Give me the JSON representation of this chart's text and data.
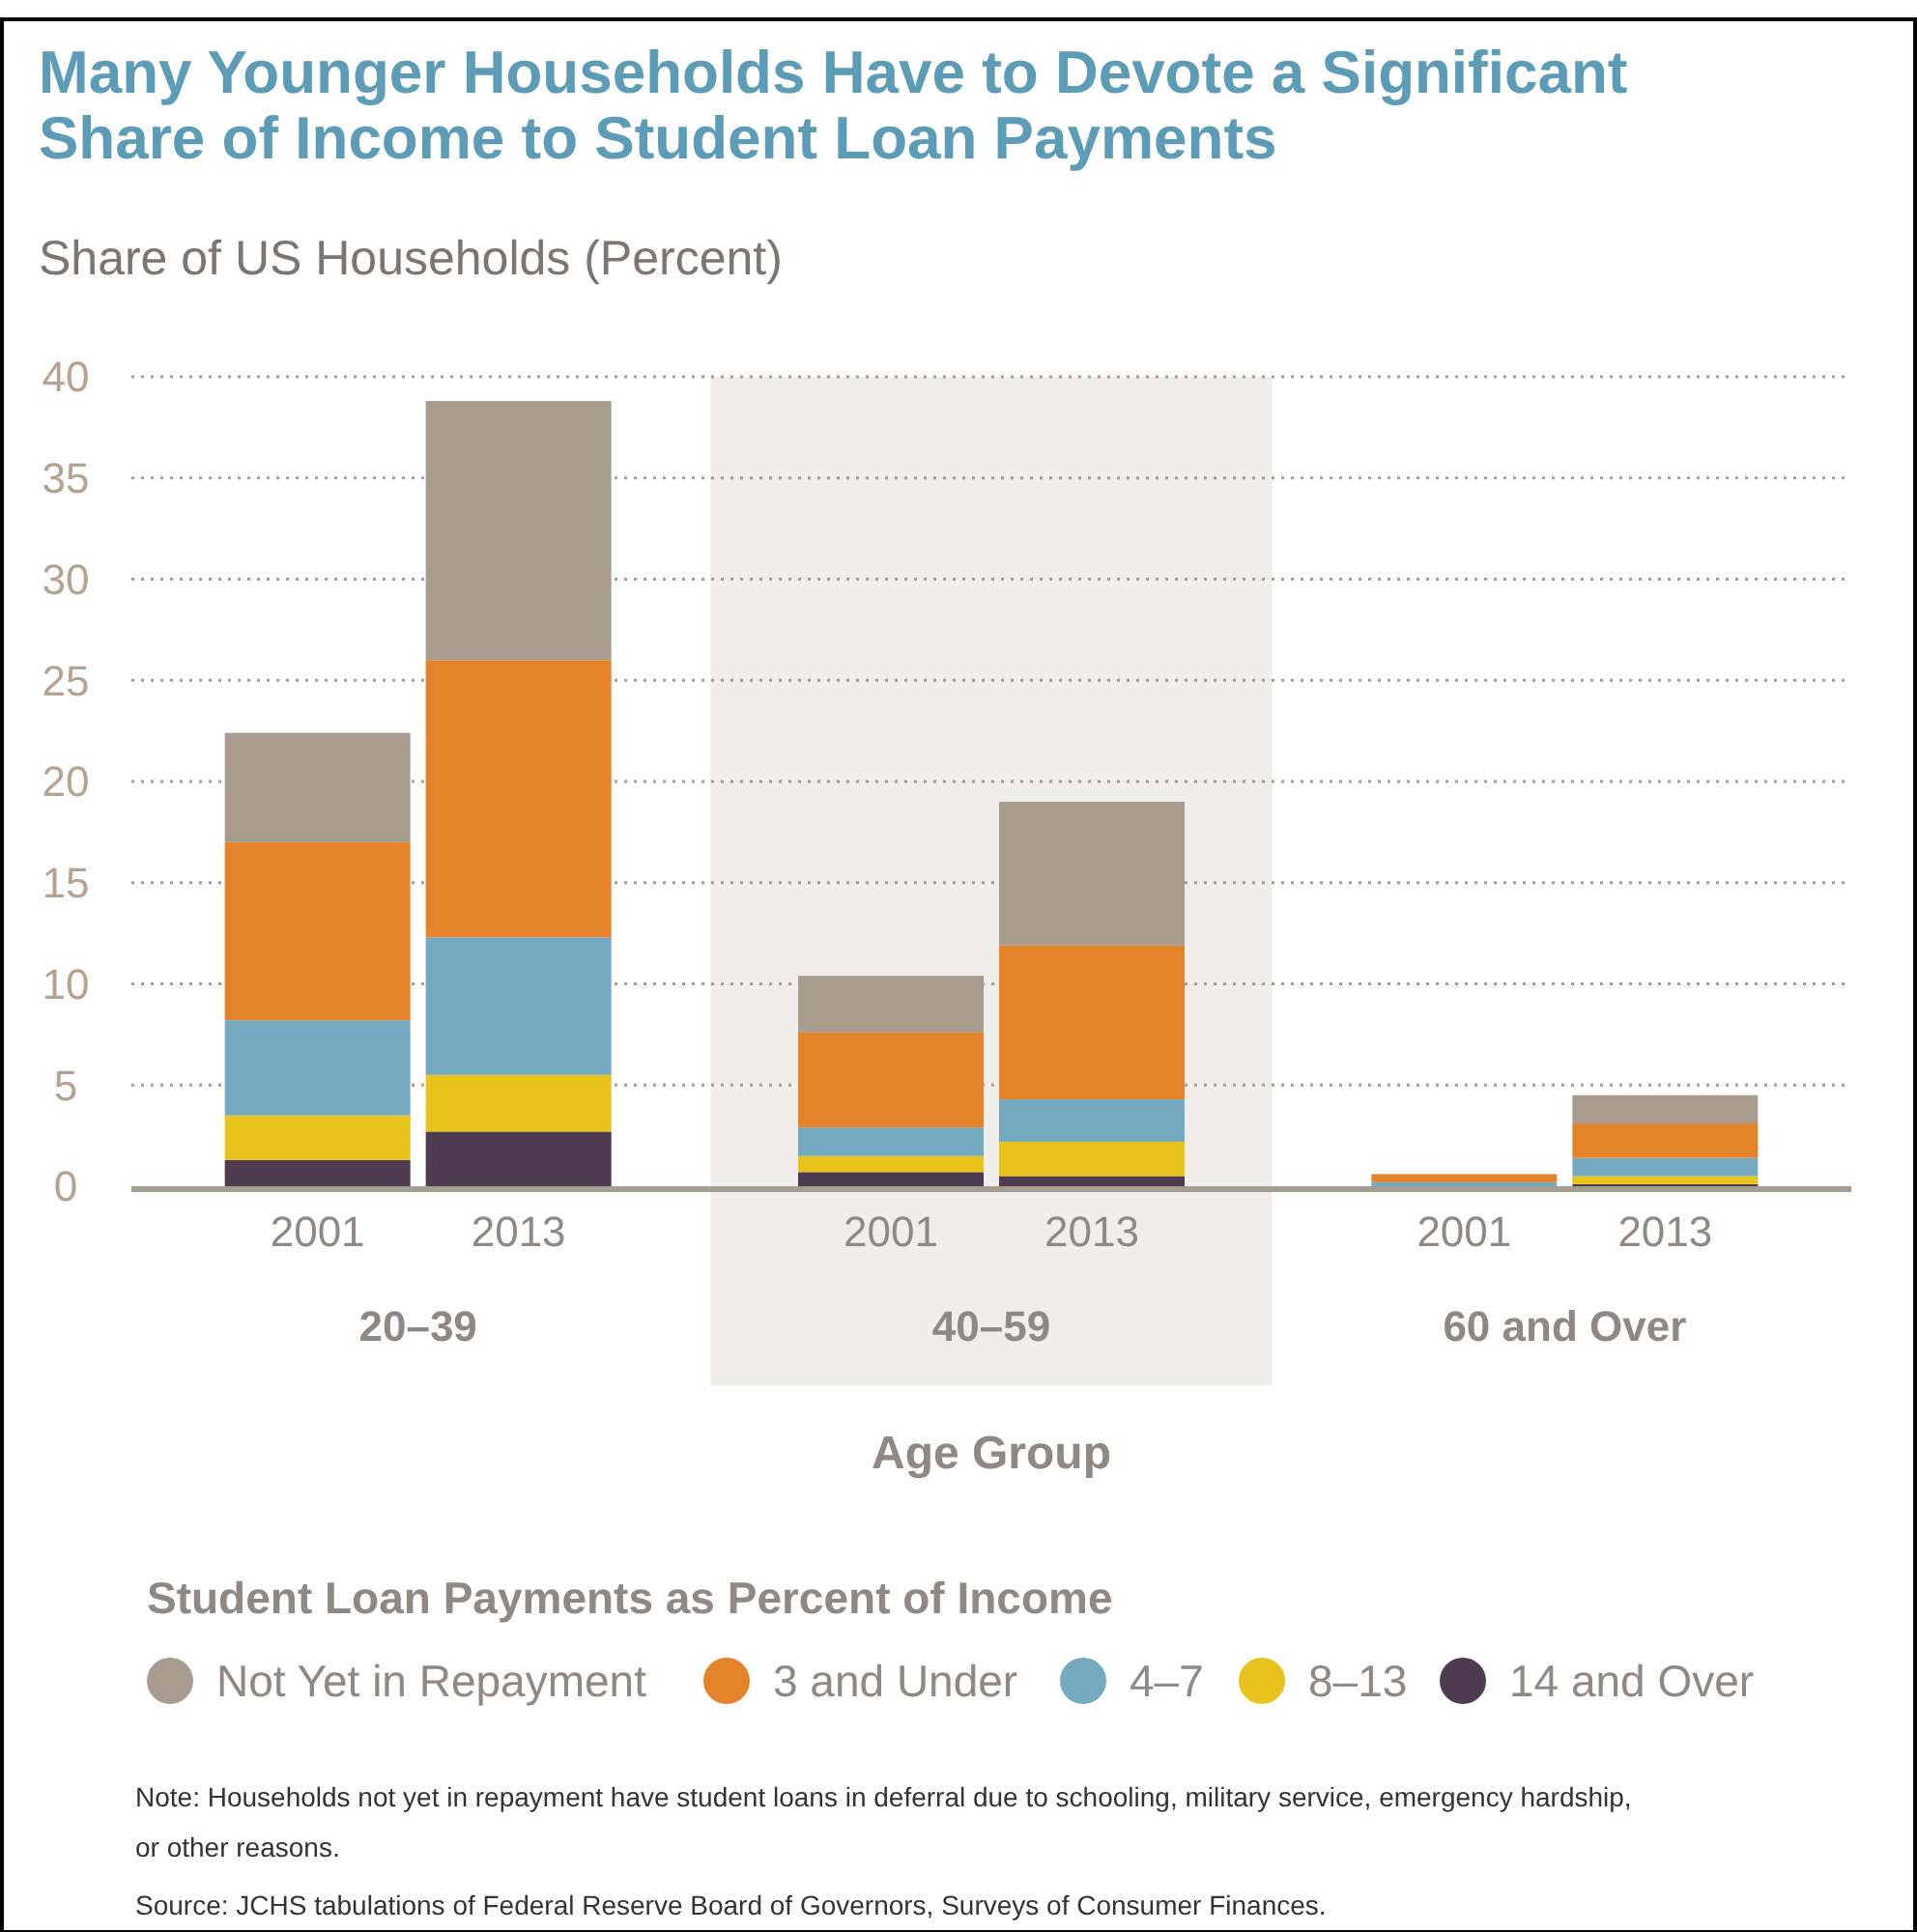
{
  "chart_data": {
    "type": "bar",
    "stacked": true,
    "title": "Many Younger Households Have to Devote a Significant\nShare of Income to Student Loan Payments",
    "subtitle": "Share of US Households (Percent)",
    "xlabel": "Age Group",
    "legend_title": "Student Loan Payments as Percent of Income",
    "legend": "bottom",
    "grid": "y",
    "categories": [
      "2001",
      "2013",
      "2001",
      "2013",
      "2001",
      "2013"
    ],
    "ylim": [
      0,
      40
    ],
    "yticks": [
      0,
      5,
      10,
      15,
      20,
      25,
      30,
      35,
      40
    ],
    "series": [
      {
        "name": "14 and Over",
        "color": "#4e3b50",
        "values": [
          1.3,
          2.7,
          0.7,
          0.5,
          0,
          0.1
        ]
      },
      {
        "name": "8–13",
        "color": "#e8c31c",
        "values": [
          2.2,
          2.8,
          0.8,
          1.7,
          0,
          0.4
        ]
      },
      {
        "name": "4–7",
        "color": "#74a9bf",
        "values": [
          4.7,
          6.8,
          1.4,
          2.1,
          0.2,
          0.9
        ]
      },
      {
        "name": "3 and Under",
        "color": "#e5832a",
        "values": [
          8.8,
          13.7,
          4.7,
          7.6,
          0.4,
          1.7
        ]
      },
      {
        "name": "Not Yet in Repayment",
        "color": "#a89c8e",
        "values": [
          5.4,
          12.8,
          2.8,
          7.1,
          0,
          1.4
        ]
      }
    ],
    "annotations": [
      "20–39",
      "40–59",
      "60 and Over",
      "Note: Households not yet in repayment have student loans in deferral due to schooling, military service, emergency hardship,\nor other reasons.",
      "Source: JCHS tabulations of Federal Reserve Board of Governors, Surveys of Consumer Finances."
    ]
  }
}
